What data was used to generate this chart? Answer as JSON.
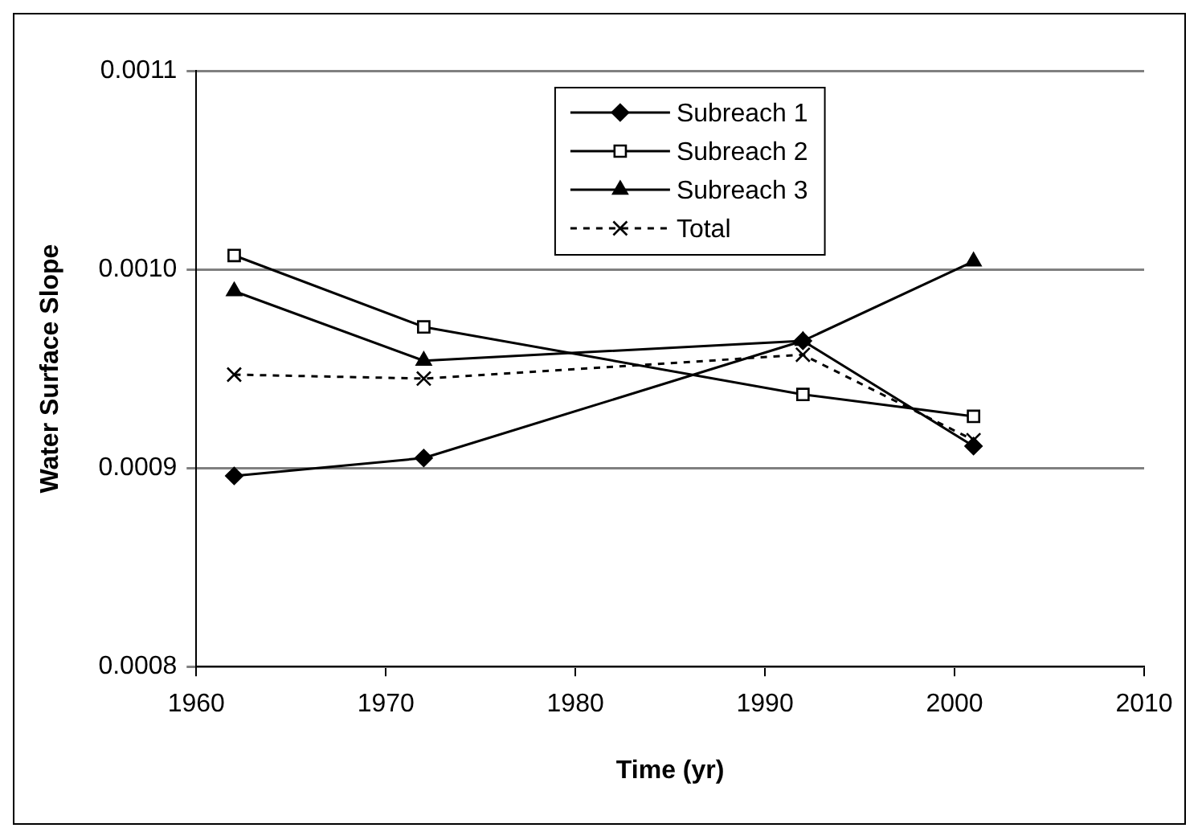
{
  "chart_data": {
    "type": "line",
    "xlabel": "Time (yr)",
    "ylabel": "Water Surface Slope",
    "xlim": [
      1960,
      2010
    ],
    "xticks": [
      1960,
      1970,
      1980,
      1990,
      2000,
      2010
    ],
    "ylim": [
      0.0008,
      0.0011
    ],
    "yticks": [
      {
        "value": 0.0008,
        "label": "0.0008"
      },
      {
        "value": 0.0009,
        "label": "0.0009"
      },
      {
        "value": 0.001,
        "label": "0.0010"
      },
      {
        "value": 0.0011,
        "label": "0.0011"
      }
    ],
    "grid": "y",
    "legend": "top",
    "x": [
      1962,
      1972,
      1992,
      2001
    ],
    "series": [
      {
        "name": "Subreach 1",
        "color": "#000000",
        "marker": "diamond",
        "line_style": "solid",
        "values": [
          0.000896,
          0.000905,
          0.000964,
          0.000911
        ]
      },
      {
        "name": "Subreach 2",
        "color": "#000000",
        "marker": "square",
        "line_style": "solid",
        "values": [
          0.001007,
          0.000971,
          0.000937,
          0.000926
        ]
      },
      {
        "name": "Subreach 3",
        "color": "#000000",
        "marker": "triangle",
        "line_style": "solid",
        "values": [
          0.000989,
          0.000954,
          0.000964,
          0.001004
        ]
      },
      {
        "name": "Total",
        "color": "#000000",
        "marker": "cross",
        "line_style": "dashed",
        "values": [
          0.000947,
          0.000945,
          0.000957,
          0.000914
        ]
      }
    ]
  }
}
